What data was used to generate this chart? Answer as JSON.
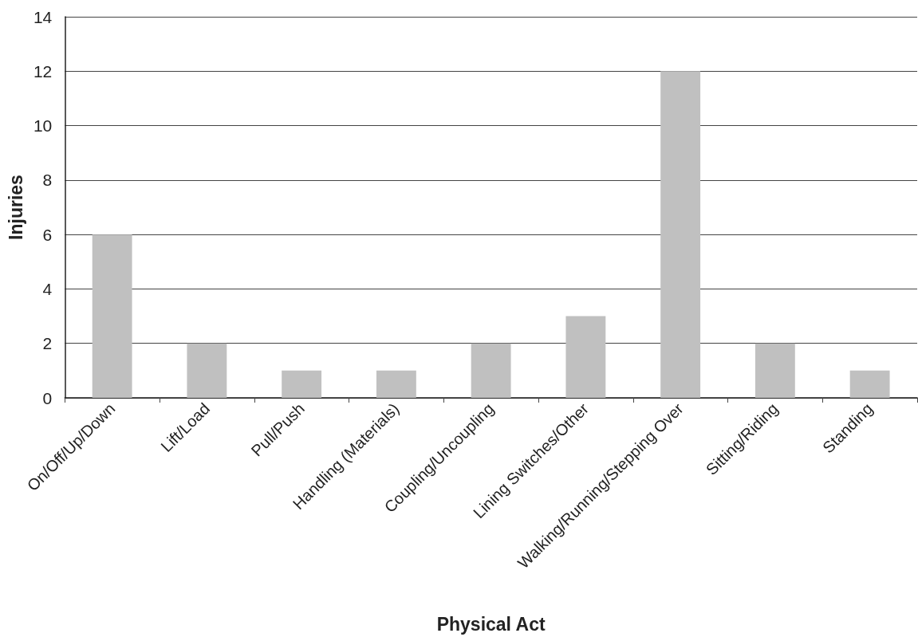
{
  "chart_data": {
    "type": "bar",
    "xlabel": "Physical Act",
    "ylabel": "Injuries",
    "categories": [
      "On/Off/Up/Down",
      "Lift/Load",
      "Pull/Push",
      "Handling (Materials)",
      "Coupling/Uncoupling",
      "Lining Switches/Other",
      "Walking/Running/Stepping Over",
      "Sitting/Riding",
      "Standing"
    ],
    "values": [
      6,
      2,
      1,
      1,
      2,
      3,
      12,
      2,
      1
    ],
    "color": "#c0c0c0",
    "ylim": [
      0,
      14
    ],
    "yticks": [
      0,
      2,
      4,
      6,
      8,
      10,
      12,
      14
    ],
    "grid": "y"
  }
}
